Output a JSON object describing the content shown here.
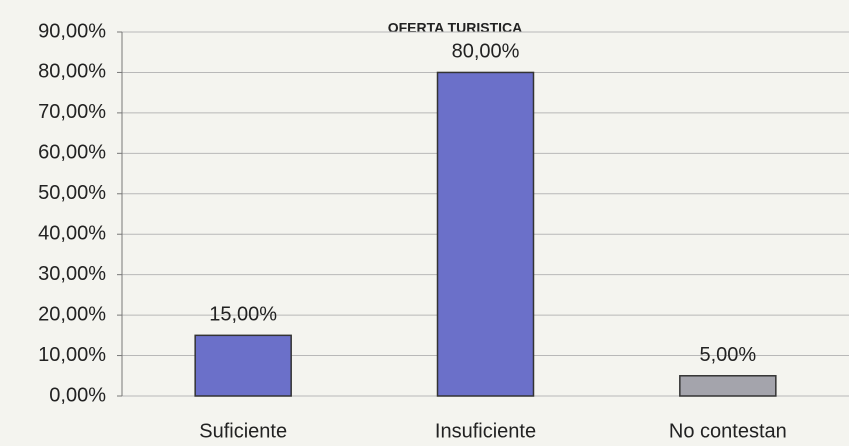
{
  "chart_data": {
    "type": "bar",
    "title": "OFERTA TURISTICA",
    "categories": [
      "Suficiente",
      "Insuficiente",
      "No contestan"
    ],
    "values": [
      15,
      80,
      5
    ],
    "value_labels": [
      "15,00%",
      "80,00%",
      "5,00%"
    ],
    "colors": [
      "#6b70c9",
      "#6b70c9",
      "#a4a4ac"
    ],
    "ylim": [
      0,
      90
    ],
    "yticks": [
      {
        "value": 0,
        "label": "0,00%"
      },
      {
        "value": 10,
        "label": "10,00%"
      },
      {
        "value": 20,
        "label": "20,00%"
      },
      {
        "value": 30,
        "label": "30,00%"
      },
      {
        "value": 40,
        "label": "40,00%"
      },
      {
        "value": 50,
        "label": "50,00%"
      },
      {
        "value": 60,
        "label": "60,00%"
      },
      {
        "value": 70,
        "label": "70,00%"
      },
      {
        "value": 80,
        "label": "80,00%"
      },
      {
        "value": 90,
        "label": "90,00%"
      }
    ],
    "grid": true
  }
}
